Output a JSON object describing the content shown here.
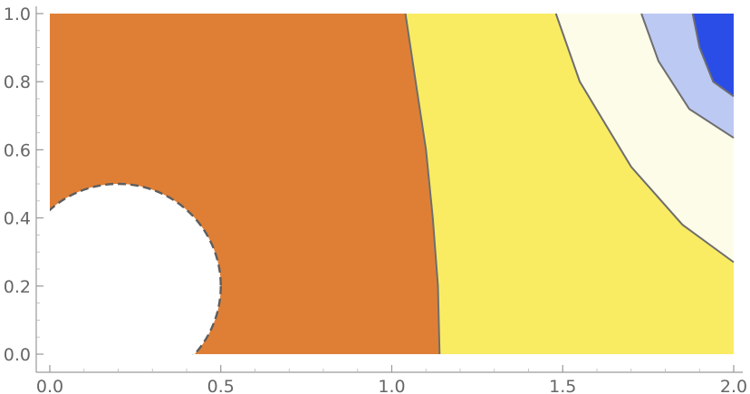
{
  "chart_data": {
    "type": "contour",
    "title": "",
    "xlabel": "",
    "ylabel": "",
    "xlim": [
      0,
      2
    ],
    "ylim": [
      0,
      1
    ],
    "x_ticks": [
      {
        "value": 0.0,
        "label": "0.0"
      },
      {
        "value": 0.5,
        "label": "0.5"
      },
      {
        "value": 1.0,
        "label": "1.0"
      },
      {
        "value": 1.5,
        "label": "1.5"
      },
      {
        "value": 2.0,
        "label": "2.0"
      }
    ],
    "y_ticks": [
      {
        "value": 0.0,
        "label": "0.0"
      },
      {
        "value": 0.2,
        "label": "0.2"
      },
      {
        "value": 0.4,
        "label": "0.4"
      },
      {
        "value": 0.6,
        "label": "0.6"
      },
      {
        "value": 0.8,
        "label": "0.8"
      },
      {
        "value": 1.0,
        "label": "1.0"
      }
    ],
    "grid": false,
    "excluded_region": {
      "shape": "circle",
      "center": [
        0.2,
        0.2
      ],
      "radius": 0.3
    },
    "regions": [
      {
        "name": "level-1",
        "color": "#df7f36"
      },
      {
        "name": "level-2",
        "color": "#f9ec63"
      },
      {
        "name": "level-3",
        "color": "#fdfce8"
      },
      {
        "name": "level-4",
        "color": "#bcc9f3"
      },
      {
        "name": "level-5",
        "color": "#2a4de8"
      }
    ],
    "contour_lines": [
      {
        "points": [
          [
            1.04,
            1.0
          ],
          [
            1.07,
            0.8
          ],
          [
            1.1,
            0.6
          ],
          [
            1.12,
            0.4
          ],
          [
            1.135,
            0.2
          ],
          [
            1.14,
            0.0
          ]
        ]
      },
      {
        "points": [
          [
            1.48,
            1.0
          ],
          [
            1.55,
            0.8
          ],
          [
            1.7,
            0.55
          ],
          [
            1.85,
            0.38
          ],
          [
            2.0,
            0.27
          ]
        ]
      },
      {
        "points": [
          [
            1.73,
            1.0
          ],
          [
            1.78,
            0.86
          ],
          [
            1.87,
            0.72
          ],
          [
            2.0,
            0.635
          ]
        ]
      },
      {
        "points": [
          [
            1.88,
            1.0
          ],
          [
            1.9,
            0.9
          ],
          [
            1.94,
            0.8
          ],
          [
            2.0,
            0.757
          ]
        ]
      }
    ]
  }
}
